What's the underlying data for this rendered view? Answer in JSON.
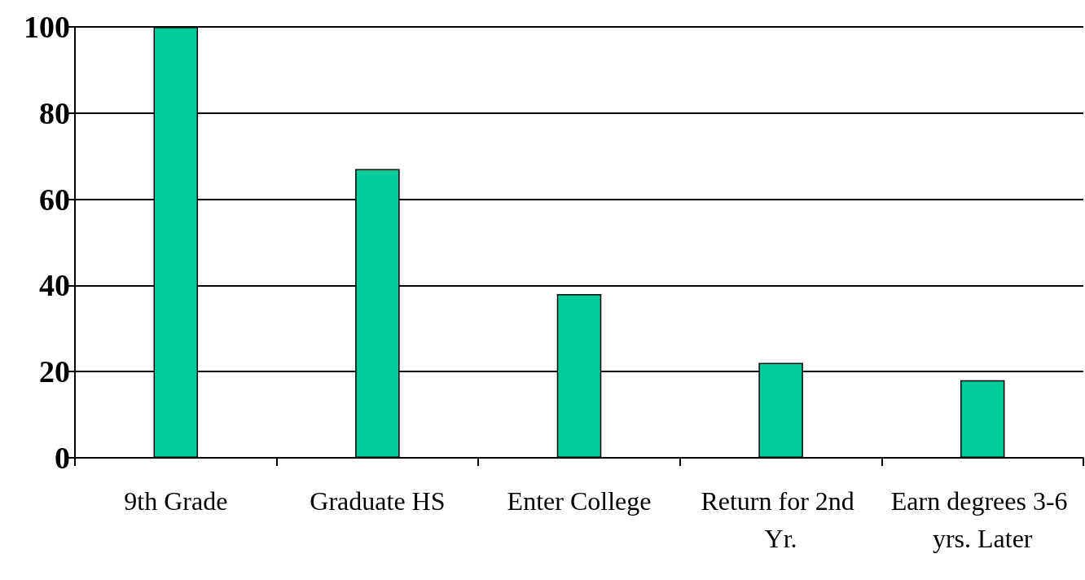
{
  "chart_data": {
    "type": "bar",
    "categories": [
      "9th Grade",
      "Graduate HS",
      "Enter College",
      "Return for 2nd Yr.",
      "Earn degrees 3-6 yrs. Later"
    ],
    "values": [
      100,
      67,
      38,
      22,
      18
    ],
    "color": "#00cc99",
    "ylim": [
      0,
      100
    ],
    "yticks": [
      0,
      20,
      40,
      60,
      80,
      100
    ],
    "grid": "y"
  }
}
